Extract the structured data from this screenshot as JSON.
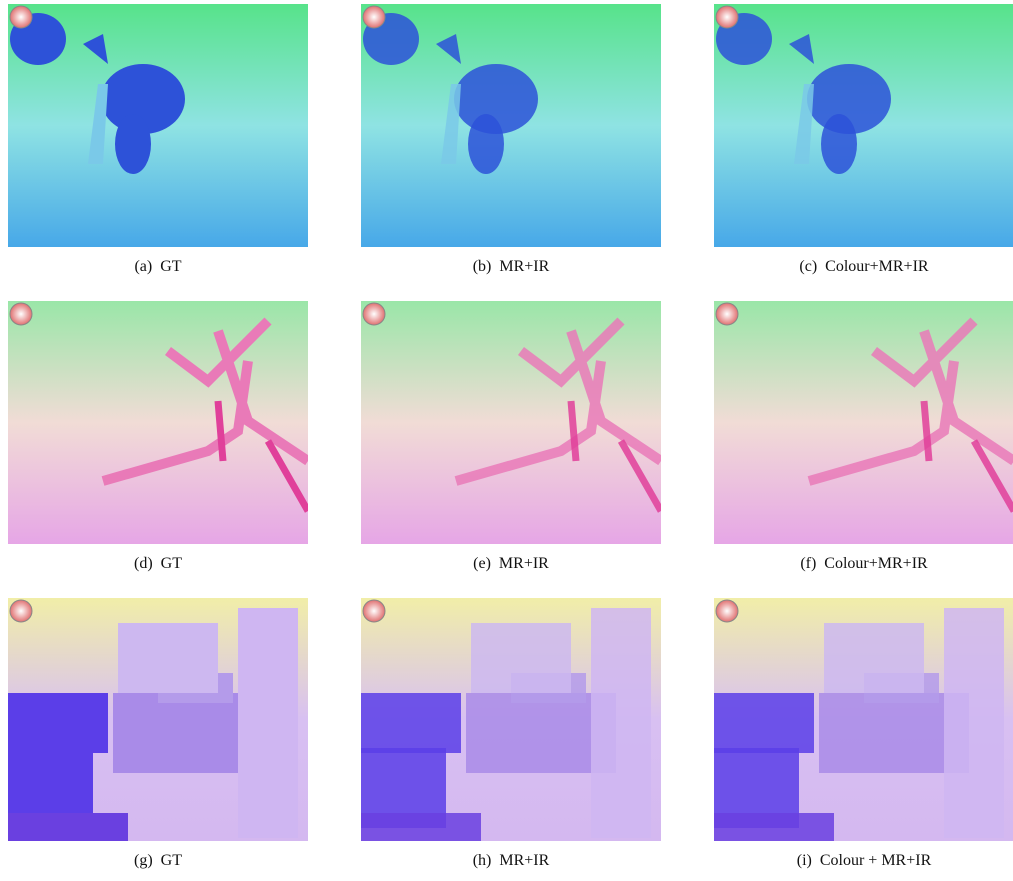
{
  "panels": [
    {
      "caption": "(a)  GT"
    },
    {
      "caption": "(b)  MR+IR"
    },
    {
      "caption": "(c)  Colour+MR+IR"
    },
    {
      "caption": "(d)  GT"
    },
    {
      "caption": "(e)  MR+IR"
    },
    {
      "caption": "(f)  Colour+MR+IR"
    },
    {
      "caption": "(g)  GT"
    },
    {
      "caption": "(h)  MR+IR"
    },
    {
      "caption": "(i)  Colour + MR+IR"
    }
  ]
}
